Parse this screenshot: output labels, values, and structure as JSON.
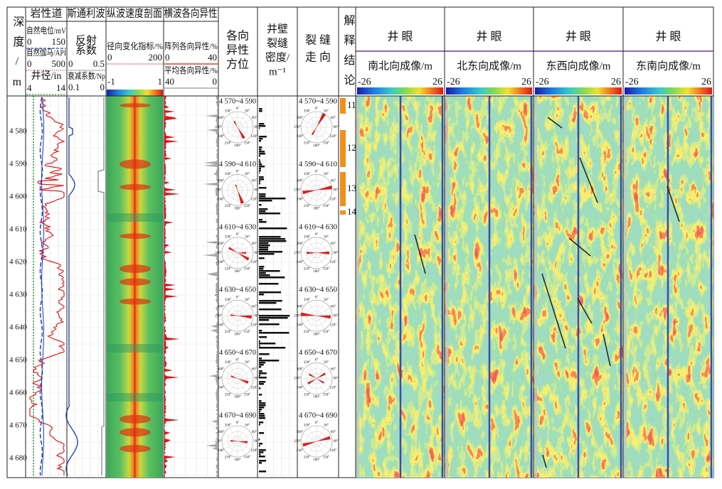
{
  "header": {
    "depth": "深度/m",
    "lithology": {
      "title": "岩性道",
      "sp": "自然电位/mV",
      "sp_min": "0",
      "sp_max": "150",
      "gr": "自然伽马/API",
      "gr_min": "0",
      "gr_max": "500",
      "cal": "井径/in",
      "cal_min": "4",
      "cal_max": "14"
    },
    "stoneley": {
      "title": "斯通利波",
      "refl": [
        "反射",
        "系数"
      ],
      "refl_min": "0",
      "refl_max": "0.5",
      "atten": "衰减系数/Np",
      "atten_min": "0.1",
      "atten_max": "0"
    },
    "pwave": {
      "title": "纵波速度剖面",
      "radial": "径向变化指标/%",
      "radial_min": "0",
      "radial_max": "200",
      "cb_min": "-1",
      "cb_max": "1"
    },
    "swave": {
      "title": "横波各向异性",
      "array": "阵列各向异性/%",
      "array_min": "0",
      "array_max": "40",
      "avg": "平均各向异性/%",
      "avg_min": "40",
      "avg_max": "0"
    },
    "azimuth": [
      "各向",
      "异性",
      "方位"
    ],
    "density": [
      "井壁",
      "裂缝",
      "密度/",
      "m⁻¹"
    ],
    "strike": [
      "裂 缝",
      "走 向"
    ],
    "conclusion": "解释结论",
    "images": [
      {
        "title": "井 眼",
        "subtitle": "南北向成像/m",
        "min": "-26",
        "max": "26"
      },
      {
        "title": "井 眼",
        "subtitle": "北东向成像/m",
        "min": "-26",
        "max": "26"
      },
      {
        "title": "井 眼",
        "subtitle": "东西向成像/m",
        "min": "-26",
        "max": "26"
      },
      {
        "title": "井 眼",
        "subtitle": "东南向成像/m",
        "min": "-26",
        "max": "26"
      }
    ]
  },
  "depth_ticks": [
    "4 580",
    "4 590",
    "4 600",
    "4 610",
    "4 620",
    "4 630",
    "4 640",
    "4 650",
    "4 660",
    "4 670",
    "4 680"
  ],
  "intervals": [
    "4 570~4 590",
    "4 590~4 610",
    "4 610~4 630",
    "4 630~4 650",
    "4 650~4 670",
    "4 670~4 690"
  ],
  "rose_labels": [
    "0°",
    "30°",
    "60°",
    "90°",
    "120°",
    "150°",
    "180°",
    "210°",
    "240°",
    "270°",
    "300°",
    "330°"
  ],
  "conclusions": [
    "11",
    "12",
    "13",
    "14"
  ]
}
